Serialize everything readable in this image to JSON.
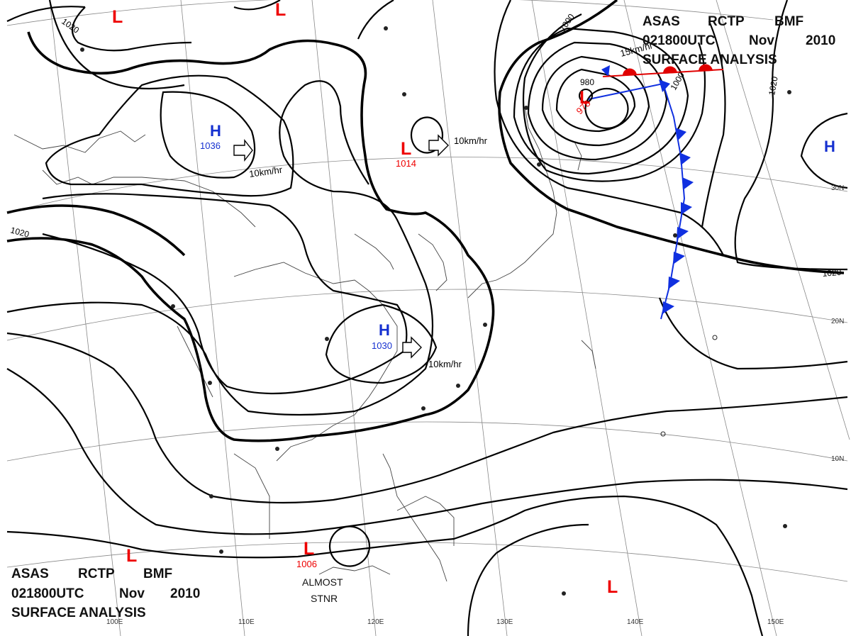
{
  "header_top": {
    "line1": [
      "ASAS",
      "RCTP",
      "BMF"
    ],
    "line2": [
      "021800UTC",
      "Nov",
      "2010"
    ],
    "line3": "SURFACE ANALYSIS"
  },
  "header_bottom": {
    "line1": [
      "ASAS",
      "RCTP",
      "BMF"
    ],
    "line2": [
      "021800UTC",
      "Nov",
      "2010"
    ],
    "line3": "SURFACE ANALYSIS"
  },
  "isobar_labels": [
    "1020",
    "1020",
    "1000",
    "1000",
    "1020",
    "1020",
    "980"
  ],
  "pressure_centers": [
    {
      "type": "L",
      "value": "978"
    },
    {
      "type": "L",
      "value": "1014"
    },
    {
      "type": "L",
      "value": "1006"
    },
    {
      "type": "H",
      "value": "1036"
    },
    {
      "type": "H",
      "value": "1030"
    },
    {
      "type": "H",
      "value": ""
    },
    {
      "type": "L",
      "value": ""
    },
    {
      "type": "L",
      "value": ""
    },
    {
      "type": "L",
      "value": ""
    },
    {
      "type": "L",
      "value": ""
    }
  ],
  "motion_labels": [
    "10km/hr",
    "10km/hr",
    "10km/hr",
    "15km/hr"
  ],
  "longitude_labels": [
    "100E",
    "110E",
    "120E",
    "130E",
    "140E",
    "150E"
  ],
  "latitude_labels": [
    "30N",
    "20N",
    "10N"
  ],
  "note": [
    "ALMOST",
    "STNR"
  ],
  "colors": {
    "low": "#e00000",
    "high": "#1530d0",
    "warm_front": "#e00000",
    "cold_front": "#1030e0"
  }
}
